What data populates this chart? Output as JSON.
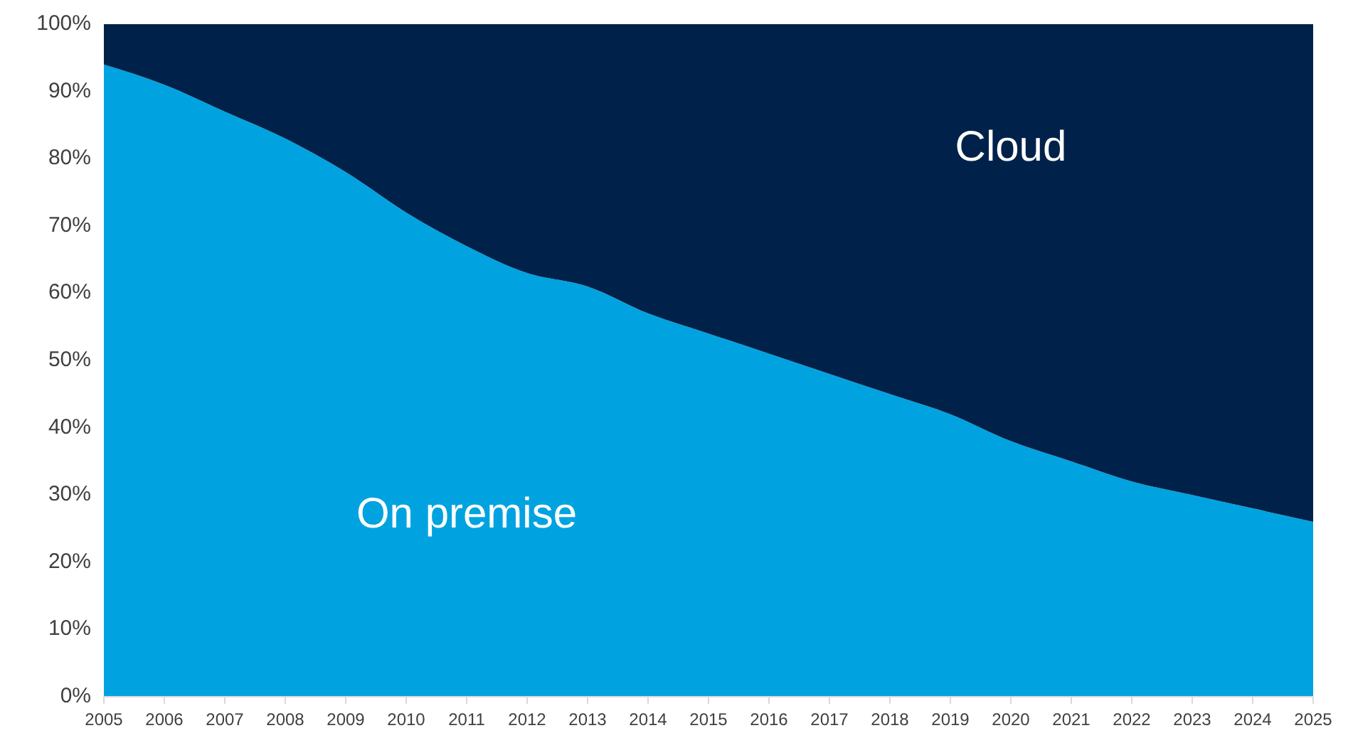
{
  "chart_data": {
    "type": "area",
    "stacked": true,
    "x": [
      2005,
      2006,
      2007,
      2008,
      2009,
      2010,
      2011,
      2012,
      2013,
      2014,
      2015,
      2016,
      2017,
      2018,
      2019,
      2020,
      2021,
      2022,
      2023,
      2024,
      2025
    ],
    "series": [
      {
        "name": "On premise",
        "color": "#00a3e0",
        "values": [
          94,
          91,
          87,
          83,
          78,
          72,
          67,
          63,
          61,
          57,
          54,
          51,
          48,
          45,
          42,
          38,
          35,
          32,
          30,
          28,
          26
        ]
      },
      {
        "name": "Cloud",
        "color": "#00224a",
        "values": [
          6,
          9,
          13,
          17,
          22,
          28,
          33,
          37,
          39,
          43,
          46,
          49,
          52,
          55,
          58,
          62,
          65,
          68,
          70,
          72,
          74
        ]
      }
    ],
    "xlim": [
      2005,
      2025
    ],
    "xticks": [
      2005,
      2006,
      2007,
      2008,
      2009,
      2010,
      2011,
      2012,
      2013,
      2014,
      2015,
      2016,
      2017,
      2018,
      2019,
      2020,
      2021,
      2022,
      2023,
      2024,
      2025
    ],
    "ylim": [
      0,
      100
    ],
    "yticks": [
      {
        "value": 0,
        "label": "0%"
      },
      {
        "value": 10,
        "label": "10%"
      },
      {
        "value": 20,
        "label": "20%"
      },
      {
        "value": 30,
        "label": "30%"
      },
      {
        "value": 40,
        "label": "40%"
      },
      {
        "value": 50,
        "label": "50%"
      },
      {
        "value": 60,
        "label": "60%"
      },
      {
        "value": 70,
        "label": "70%"
      },
      {
        "value": 80,
        "label": "80%"
      },
      {
        "value": 90,
        "label": "90%"
      },
      {
        "value": 100,
        "label": "100%"
      }
    ]
  }
}
